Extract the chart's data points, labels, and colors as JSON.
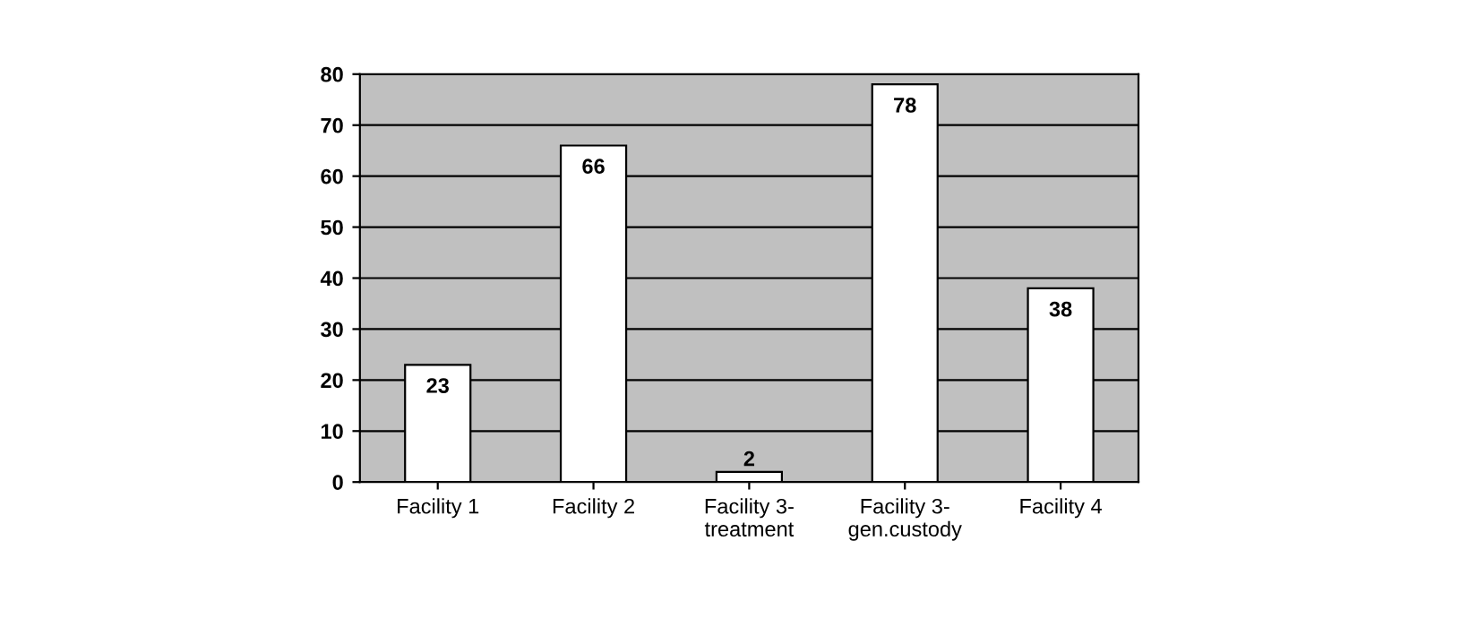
{
  "chart_data": {
    "type": "bar",
    "categories": [
      "Facility 1",
      "Facility 2",
      "Facility 3-\ntreatment",
      "Facility 3-\ngen.custody",
      "Facility 4"
    ],
    "values": [
      23,
      66,
      2,
      78,
      38
    ],
    "color": "#ffffff",
    "ylim": [
      0,
      80
    ],
    "yticks": [
      0,
      10,
      20,
      30,
      40,
      50,
      60,
      70,
      80
    ],
    "grid": "y",
    "data_labels": true
  }
}
